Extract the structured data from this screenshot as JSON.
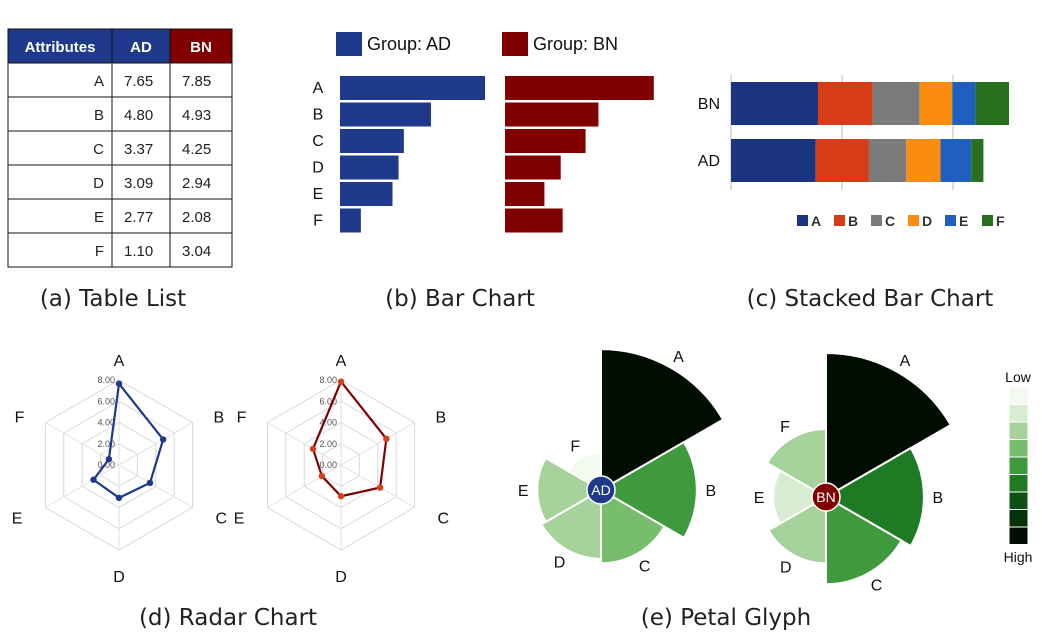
{
  "colors": {
    "ad": "#1f3a8a",
    "bn": "#800000",
    "stack": [
      "#1a3480",
      "#d83b17",
      "#7b7b7b",
      "#fb8c10",
      "#1f5fbf",
      "#287020"
    ]
  },
  "chart_data": [
    {
      "type": "table",
      "caption": "(a) Table List",
      "columns": [
        "Attributes",
        "AD",
        "BN"
      ],
      "rows": [
        [
          "A",
          "7.65",
          "7.85"
        ],
        [
          "B",
          "4.80",
          "4.93"
        ],
        [
          "C",
          "3.37",
          "4.25"
        ],
        [
          "D",
          "3.09",
          "2.94"
        ],
        [
          "E",
          "2.77",
          "2.08"
        ],
        [
          "F",
          "1.10",
          "3.04"
        ]
      ]
    },
    {
      "type": "bar",
      "caption": "(b) Bar Chart",
      "categories": [
        "A",
        "B",
        "C",
        "D",
        "E",
        "F"
      ],
      "series": [
        {
          "name": "Group: AD",
          "values": [
            7.65,
            4.8,
            3.37,
            3.09,
            2.77,
            1.1
          ]
        },
        {
          "name": "Group: BN",
          "values": [
            7.85,
            4.93,
            4.25,
            2.94,
            2.08,
            3.04
          ]
        }
      ],
      "orientation": "horizontal",
      "legend": "top"
    },
    {
      "type": "bar",
      "stacked": true,
      "caption": "(c) Stacked Bar Chart",
      "categories": [
        "BN",
        "AD"
      ],
      "series": [
        {
          "name": "A",
          "values": [
            7.85,
            7.65
          ]
        },
        {
          "name": "B",
          "values": [
            4.93,
            4.8
          ]
        },
        {
          "name": "C",
          "values": [
            4.25,
            3.37
          ]
        },
        {
          "name": "D",
          "values": [
            2.94,
            3.09
          ]
        },
        {
          "name": "E",
          "values": [
            2.08,
            2.77
          ]
        },
        {
          "name": "F",
          "values": [
            3.04,
            1.1
          ]
        }
      ],
      "legend": "bottom-right"
    },
    {
      "type": "radar",
      "caption": "(d) Radar Chart",
      "axes": [
        "A",
        "B",
        "C",
        "D",
        "E",
        "F"
      ],
      "rlim": [
        0,
        8
      ],
      "ticks": [
        "0.00",
        "2.00",
        "4.00",
        "6.00",
        "8.00"
      ],
      "series": [
        {
          "values": [
            7.65,
            4.8,
            3.37,
            3.09,
            2.77,
            1.1
          ]
        },
        {
          "values": [
            7.85,
            4.93,
            4.25,
            2.94,
            2.08,
            3.04
          ]
        }
      ]
    },
    {
      "type": "petal",
      "caption": "(e) Petal Glyph",
      "axes": [
        "A",
        "B",
        "C",
        "D",
        "E",
        "F"
      ],
      "glyphs": [
        {
          "center_label": "AD",
          "values": [
            7.65,
            4.8,
            3.37,
            3.09,
            2.77,
            1.1
          ]
        },
        {
          "center_label": "BN",
          "values": [
            7.85,
            4.93,
            4.25,
            2.94,
            2.08,
            3.04
          ]
        }
      ],
      "colorscale": {
        "low_label": "Low",
        "high_label": "High",
        "colors": [
          "#f4faf0",
          "#d7ecd0",
          "#a6d39b",
          "#78bd6e",
          "#3e9a3c",
          "#1f7a24",
          "#0b5214",
          "#063209",
          "#020d02"
        ]
      }
    }
  ]
}
